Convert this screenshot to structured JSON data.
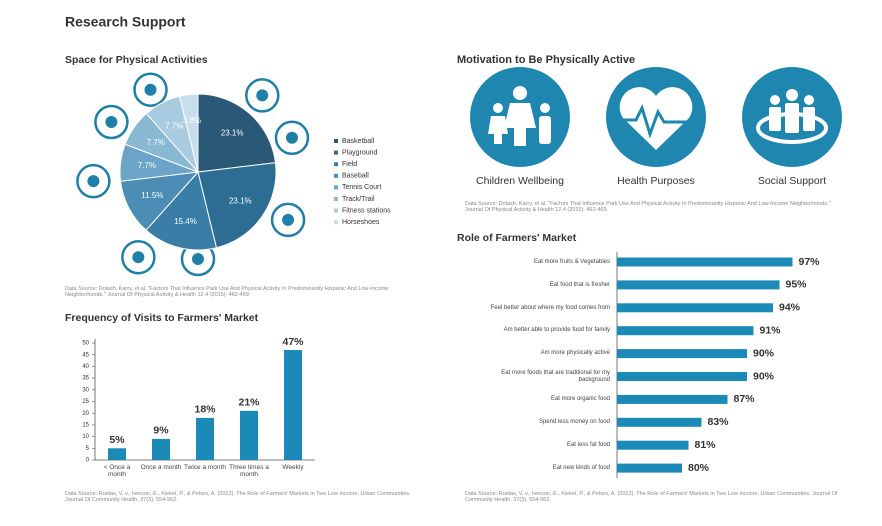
{
  "title": "Research Support",
  "chart_data": [
    {
      "type": "pie",
      "title": "Space for Physical Activities",
      "categories": [
        "Basketball",
        "Playground",
        "Field",
        "Baseball",
        "Tennis Court",
        "Track/Trail",
        "Fitness stations",
        "Horseshoes"
      ],
      "values": [
        23.1,
        23.1,
        15.4,
        11.5,
        7.7,
        7.7,
        7.7,
        3.8
      ],
      "value_labels": [
        "23.1%",
        "23.1%",
        "15.4%",
        "11.5%",
        "7.7%",
        "7.7%",
        "7.7%",
        "3.8%"
      ],
      "colors": [
        "#2a5877",
        "#2e6d93",
        "#3a7ea7",
        "#4b8db4",
        "#6ba4c6",
        "#89b8d3",
        "#a8cbe0",
        "#c8deeb"
      ],
      "source": "Data Source: Dolash, Karry, et al. \"Factors That Influence Park Use And Physical Activity In Predominantly Hispanic And Low-Income Neighborhoods.\" Journal Of Physical Activity & Health 12.4 (2015): 462-469."
    },
    {
      "type": "bar",
      "title": "Frequency of Visits to Farmers' Market",
      "categories": [
        "< Once a month",
        "Once a month",
        "Twice a month",
        "Three times a month",
        "Weekly"
      ],
      "values": [
        5,
        9,
        18,
        21,
        47
      ],
      "value_labels": [
        "5%",
        "9%",
        "18%",
        "21%",
        "47%"
      ],
      "color": "#1b8ab6",
      "ylim": [
        0,
        50
      ],
      "yticks": [
        0,
        5,
        10,
        15,
        20,
        25,
        30,
        35,
        40,
        45,
        50
      ],
      "source": "Data Source: Ruelas, V. v., Iverson, E., Kiekel, P., & Peters, A. (2012). The Role of Farmers' Markets in Two Low Income, Urban Communities. Journal Of Community Health, 37(3), 554-562."
    },
    {
      "type": "hbar",
      "title": "Role of Farmers' Market",
      "categories": [
        "Eat more fruits & Vegetables",
        "Eat food that is fresher",
        "Feel better about where my food comes from",
        "Am better able to provide food for family",
        "Am more physically active",
        "Eat more foods that are traditional for my background",
        "Eat more organic food",
        "Spend less money on food",
        "Eat less fat food",
        "Eat new kinds of food"
      ],
      "values": [
        97,
        95,
        94,
        91,
        90,
        90,
        87,
        83,
        81,
        80
      ],
      "value_labels": [
        "97%",
        "95%",
        "94%",
        "91%",
        "90%",
        "90%",
        "87%",
        "83%",
        "81%",
        "80%"
      ],
      "color": "#1b8ab6",
      "xlim": [
        70,
        100
      ],
      "source": "Data Source: Ruelas, V. v., Iverson, E., Kiekel, P., & Peters, A. (2012). The Role of Farmers' Markets in Two Low Income, Urban Communities. Journal Of Community Health, 37(3), 554-562."
    }
  ],
  "motivation": {
    "title": "Motivation to Be Physically Active",
    "items": [
      "Children Wellbeing",
      "Health Purposes",
      "Social Support"
    ],
    "source": "Data Source: Dolash, Karry, et al. \"Factors That Influence Park Use And Physical Activity In Predominantly Hispanic And Low-Income Neighborhoods.\" Journal Of Physical Activity & Health 12.4 (2015): 462-469."
  }
}
